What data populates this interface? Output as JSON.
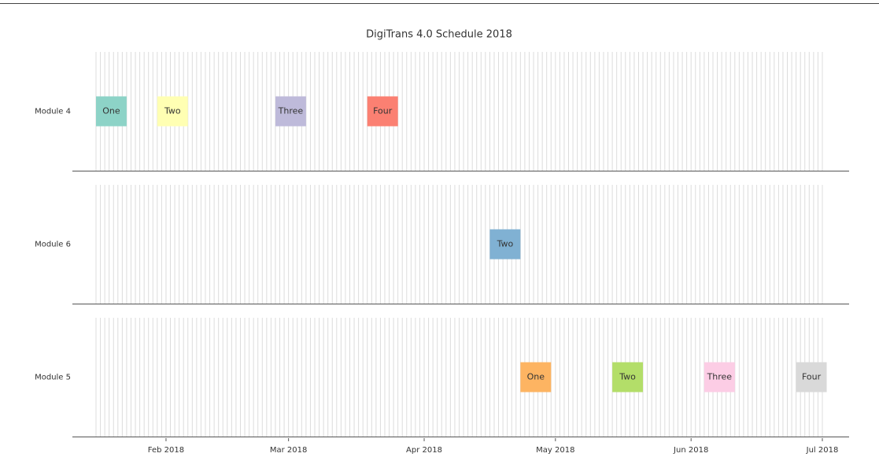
{
  "chart_data": {
    "type": "gantt",
    "title": "DigiTrans 4.0 Schedule 2018",
    "xlim": [
      "2018-01-16",
      "2018-07-01"
    ],
    "xticks": [
      {
        "value": "2018-02-01",
        "label": "Feb 2018"
      },
      {
        "value": "2018-03-01",
        "label": "Mar 2018"
      },
      {
        "value": "2018-04-01",
        "label": "Apr 2018"
      },
      {
        "value": "2018-05-01",
        "label": "May 2018"
      },
      {
        "value": "2018-06-01",
        "label": "Jun 2018"
      },
      {
        "value": "2018-07-01",
        "label": "Jul 2018"
      }
    ],
    "grid": "day",
    "rows": [
      {
        "name": "Module 4",
        "tasks": [
          {
            "name": "One",
            "start": "2018-01-16",
            "end": "2018-01-23",
            "color": "#8dd3c7"
          },
          {
            "name": "Two",
            "start": "2018-01-30",
            "end": "2018-02-06",
            "color": "#ffffb3"
          },
          {
            "name": "Three",
            "start": "2018-02-26",
            "end": "2018-03-05",
            "color": "#bebada"
          },
          {
            "name": "Four",
            "start": "2018-03-19",
            "end": "2018-03-26",
            "color": "#fb8072"
          }
        ]
      },
      {
        "name": "Module 6",
        "tasks": [
          {
            "name": "Two",
            "start": "2018-04-16",
            "end": "2018-04-23",
            "color": "#80b1d3"
          }
        ]
      },
      {
        "name": "Module 5",
        "tasks": [
          {
            "name": "One",
            "start": "2018-04-23",
            "end": "2018-04-30",
            "color": "#fdb462"
          },
          {
            "name": "Two",
            "start": "2018-05-14",
            "end": "2018-05-21",
            "color": "#b3de69"
          },
          {
            "name": "Three",
            "start": "2018-06-04",
            "end": "2018-06-11",
            "color": "#fccde5"
          },
          {
            "name": "Four",
            "start": "2018-06-25",
            "end": "2018-07-02",
            "color": "#d9d9d9"
          }
        ]
      }
    ]
  }
}
